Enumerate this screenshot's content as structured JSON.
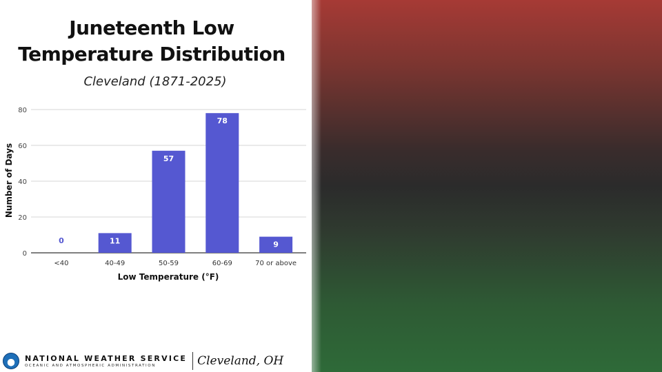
{
  "title_lines": [
    "Juneteenth Low",
    "Temperature Distribution"
  ],
  "subtitle": "Cleveland (1871-2025)",
  "chart_data": {
    "type": "bar",
    "categories": [
      "<40",
      "40-49",
      "50-59",
      "60-69",
      "70 or above"
    ],
    "values": [
      0,
      11,
      57,
      78,
      9
    ],
    "xlabel": "Low Temperature (°F)",
    "ylabel": "Number of Days",
    "ylim": [
      0,
      80
    ],
    "yticks": [
      0,
      20,
      40,
      60,
      80
    ],
    "grid": true,
    "bar_color": "#5558d1"
  },
  "footer": {
    "agency": "NATIONAL WEATHER SERVICE",
    "agency_sub": "OCEANIC AND ATMOSPHERIC ADMINISTRATION",
    "office": "Cleveland, OH"
  }
}
